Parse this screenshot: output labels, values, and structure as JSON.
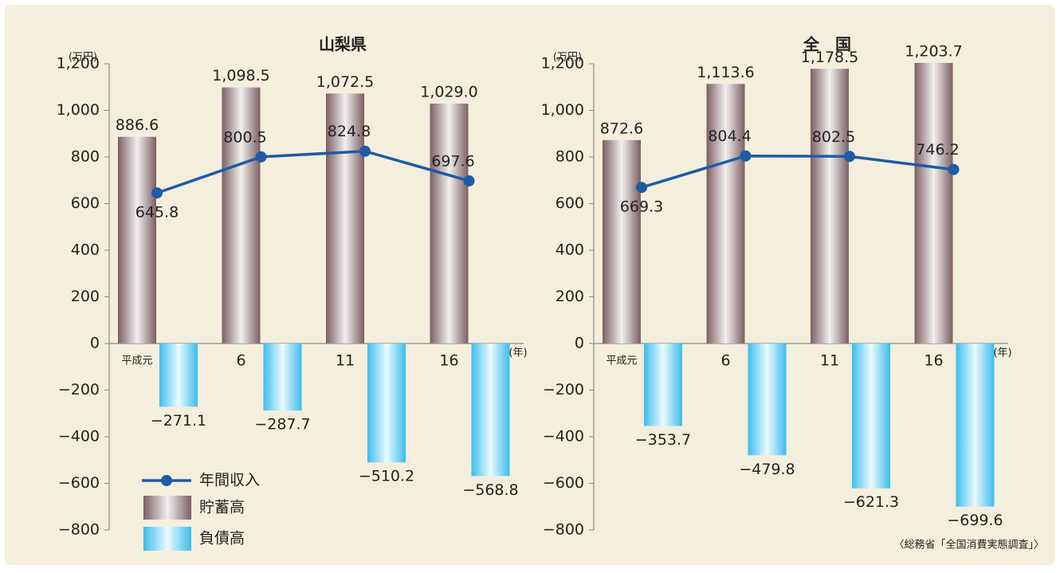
{
  "legend": [
    {
      "name": "年間収入",
      "color": "#1f5ba6"
    },
    {
      "name": "貯蓄高",
      "color": "#7a5f63"
    },
    {
      "name": "負債高",
      "color": "#3cbcec"
    }
  ],
  "source": "〈総務省「全国消費実態調査」〉",
  "chart_data": [
    {
      "type": "bar_line",
      "title": "山梨県",
      "ylabel": "(万円)",
      "xlabel": "(年)",
      "categories": [
        "平成元",
        "6",
        "11",
        "16"
      ],
      "ylim": [
        -800,
        1200
      ],
      "yticks": [
        {
          "value": 1200,
          "label": "1,200"
        },
        {
          "value": 1000,
          "label": "1,000"
        },
        800,
        600,
        400,
        200,
        0,
        {
          "value": -200,
          "label": "−200"
        },
        {
          "value": -400,
          "label": "−400"
        },
        {
          "value": -600,
          "label": "−600"
        },
        {
          "value": -800,
          "label": "−800"
        }
      ],
      "series": [
        {
          "values": [
            645.8,
            800.5,
            824.8,
            697.6
          ],
          "value_labels": [
            "645.8",
            "800.5",
            "824.8",
            "697.6"
          ]
        },
        {
          "values": [
            886.6,
            1098.5,
            1072.5,
            1029.0
          ],
          "value_labels": [
            "886.6",
            "1,098.5",
            "1,072.5",
            "1,029.0"
          ]
        },
        {
          "values": [
            -271.1,
            -287.7,
            -510.2,
            -568.8
          ],
          "value_labels": [
            "−271.1",
            "−287.7",
            "−510.2",
            "−568.8"
          ]
        }
      ]
    },
    {
      "type": "bar_line",
      "title": "全　国",
      "ylabel": "(万円)",
      "xlabel": "(年)",
      "categories": [
        "平成元",
        "6",
        "11",
        "16"
      ],
      "ylim": [
        -800,
        1200
      ],
      "yticks": [
        {
          "value": 1200,
          "label": "1,200"
        },
        {
          "value": 1000,
          "label": "1,000"
        },
        800,
        600,
        400,
        200,
        0,
        {
          "value": -200,
          "label": "−200"
        },
        {
          "value": -400,
          "label": "−400"
        },
        {
          "value": -600,
          "label": "−600"
        },
        {
          "value": -800,
          "label": "−800"
        }
      ],
      "series": [
        {
          "values": [
            669.3,
            804.4,
            802.5,
            746.2
          ],
          "value_labels": [
            "669.3",
            "804.4",
            "802.5",
            "746.2"
          ]
        },
        {
          "values": [
            872.6,
            1113.6,
            1178.5,
            1203.7
          ],
          "value_labels": [
            "872.6",
            "1,113.6",
            "1,178.5",
            "1,203.7"
          ]
        },
        {
          "values": [
            -353.7,
            -479.8,
            -621.3,
            -699.6
          ],
          "value_labels": [
            "−353.7",
            "−479.8",
            "−621.3",
            "−699.6"
          ]
        }
      ]
    }
  ]
}
